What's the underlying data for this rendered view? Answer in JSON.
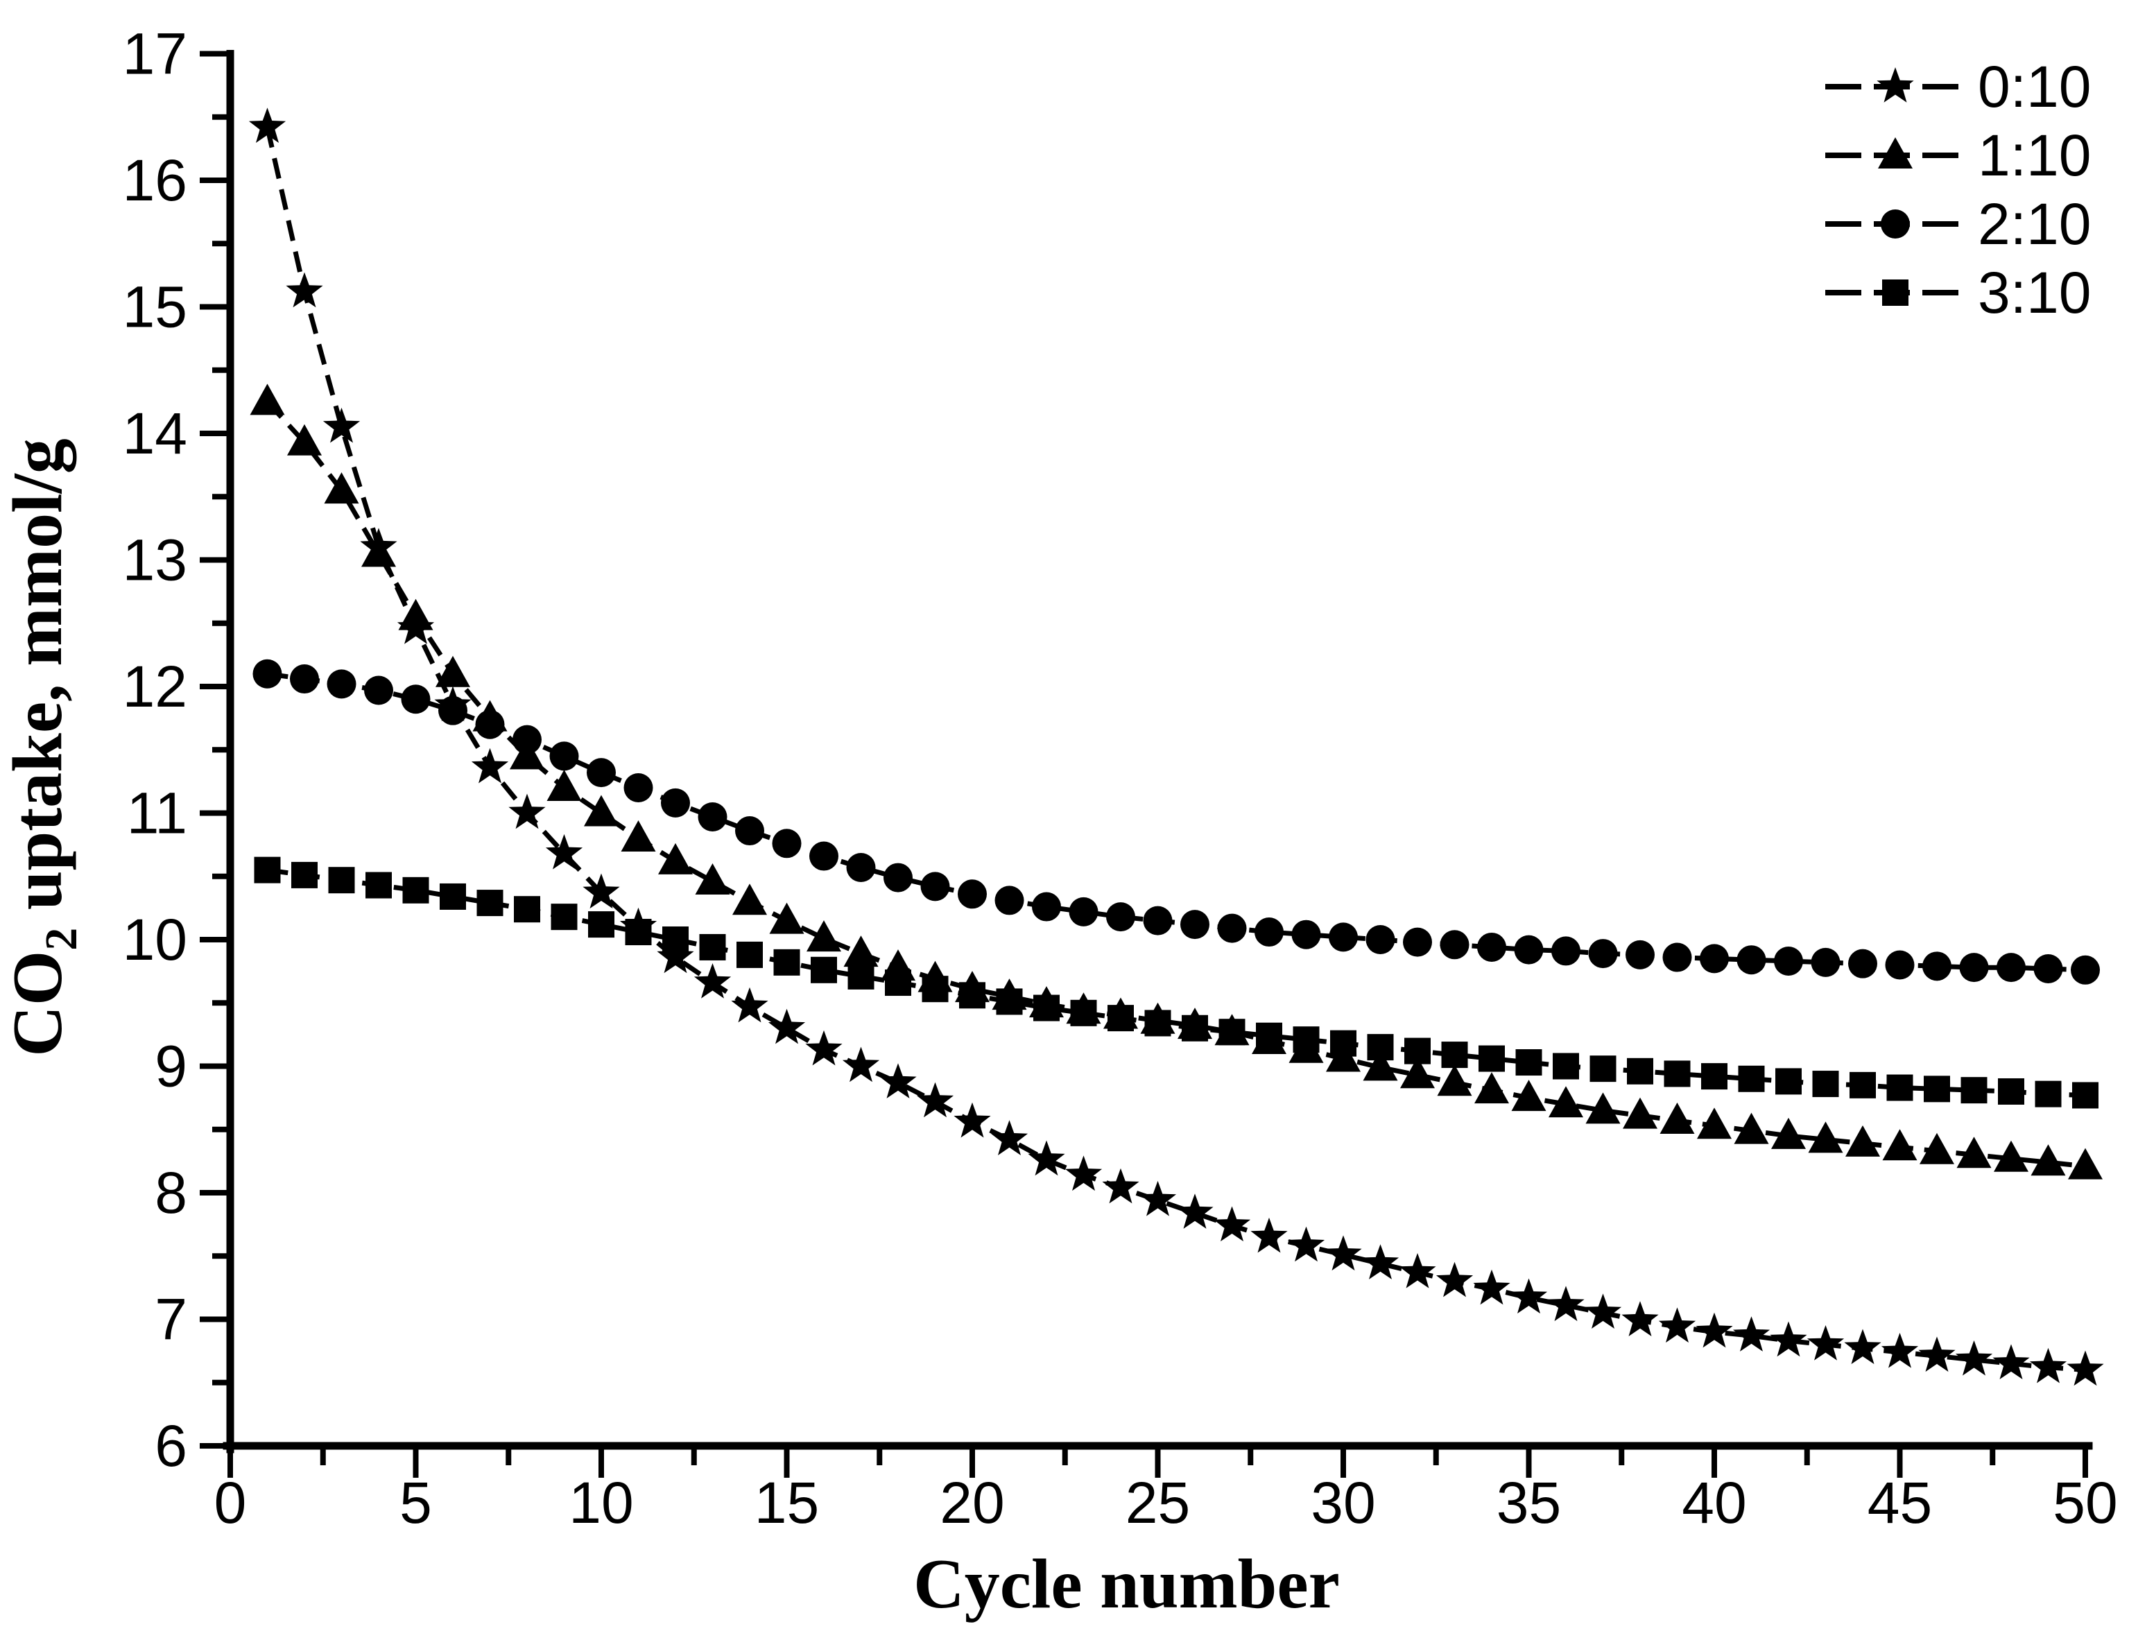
{
  "figure": {
    "background": "#ffffff",
    "foreground": "#000000"
  },
  "chart_data": {
    "type": "line",
    "title": "",
    "xlabel": "Cycle number",
    "ylabel": "CO2 uptake, mmol/g",
    "ylabel_parts": {
      "base": "CO",
      "sub": "2",
      "rest": " uptake, mmol/g"
    },
    "xlim": [
      0,
      50
    ],
    "ylim": [
      6,
      17
    ],
    "x_major_ticks": [
      0,
      5,
      10,
      15,
      20,
      25,
      30,
      35,
      40,
      45,
      50
    ],
    "x_minor_ticks": [
      2.5,
      7.5,
      12.5,
      17.5,
      22.5,
      27.5,
      32.5,
      37.5,
      42.5,
      47.5
    ],
    "y_major_ticks": [
      6,
      7,
      8,
      9,
      10,
      11,
      12,
      13,
      14,
      15,
      16,
      17
    ],
    "y_minor_ticks": [
      6.5,
      7.5,
      8.5,
      9.5,
      10.5,
      11.5,
      12.5,
      13.5,
      14.5,
      15.5,
      16.5
    ],
    "grid": false,
    "legend_position": "top-right",
    "x": [
      1,
      2,
      3,
      4,
      5,
      6,
      7,
      8,
      9,
      10,
      11,
      12,
      13,
      14,
      15,
      16,
      17,
      18,
      19,
      20,
      21,
      22,
      23,
      24,
      25,
      26,
      27,
      28,
      29,
      30,
      31,
      32,
      33,
      34,
      35,
      36,
      37,
      38,
      39,
      40,
      41,
      42,
      43,
      44,
      45,
      46,
      47,
      48,
      49,
      50
    ],
    "series": [
      {
        "name": "0:10",
        "marker": "star",
        "values": [
          16.42,
          15.12,
          14.05,
          13.1,
          12.46,
          11.85,
          11.36,
          11.0,
          10.68,
          10.37,
          10.1,
          9.86,
          9.66,
          9.47,
          9.3,
          9.13,
          9.0,
          8.87,
          8.72,
          8.56,
          8.42,
          8.26,
          8.14,
          8.04,
          7.94,
          7.84,
          7.74,
          7.65,
          7.58,
          7.51,
          7.44,
          7.37,
          7.3,
          7.24,
          7.17,
          7.11,
          7.05,
          6.99,
          6.94,
          6.9,
          6.87,
          6.83,
          6.8,
          6.77,
          6.74,
          6.71,
          6.68,
          6.65,
          6.62,
          6.6
        ]
      },
      {
        "name": "1:10",
        "marker": "triangle",
        "values": [
          14.25,
          13.93,
          13.55,
          13.05,
          12.55,
          12.1,
          11.75,
          11.45,
          11.2,
          11.0,
          10.8,
          10.62,
          10.46,
          10.3,
          10.15,
          10.01,
          9.89,
          9.78,
          9.69,
          9.61,
          9.55,
          9.49,
          9.44,
          9.4,
          9.36,
          9.32,
          9.27,
          9.2,
          9.13,
          9.06,
          8.99,
          8.93,
          8.87,
          8.81,
          8.75,
          8.7,
          8.65,
          8.61,
          8.57,
          8.53,
          8.49,
          8.45,
          8.42,
          8.39,
          8.36,
          8.33,
          8.3,
          8.27,
          8.24,
          8.21
        ]
      },
      {
        "name": "2:10",
        "marker": "circle",
        "values": [
          12.1,
          12.06,
          12.02,
          11.97,
          11.9,
          11.81,
          11.7,
          11.58,
          11.45,
          11.32,
          11.2,
          11.08,
          10.97,
          10.86,
          10.76,
          10.66,
          10.57,
          10.49,
          10.42,
          10.36,
          10.31,
          10.26,
          10.22,
          10.18,
          10.15,
          10.12,
          10.09,
          10.06,
          10.04,
          10.02,
          10.0,
          9.98,
          9.96,
          9.94,
          9.92,
          9.91,
          9.89,
          9.88,
          9.86,
          9.85,
          9.84,
          9.83,
          9.82,
          9.81,
          9.8,
          9.79,
          9.78,
          9.78,
          9.77,
          9.76
        ]
      },
      {
        "name": "3:10",
        "marker": "square",
        "values": [
          10.55,
          10.51,
          10.47,
          10.43,
          10.39,
          10.34,
          10.29,
          10.24,
          10.18,
          10.12,
          10.06,
          10.0,
          9.94,
          9.88,
          9.82,
          9.76,
          9.71,
          9.66,
          9.61,
          9.56,
          9.51,
          9.46,
          9.42,
          9.38,
          9.34,
          9.3,
          9.27,
          9.24,
          9.21,
          9.18,
          9.15,
          9.12,
          9.09,
          9.06,
          9.03,
          9.0,
          8.98,
          8.96,
          8.94,
          8.92,
          8.9,
          8.88,
          8.86,
          8.85,
          8.83,
          8.82,
          8.81,
          8.8,
          8.78,
          8.77
        ]
      }
    ],
    "legend": [
      {
        "label": "0:10",
        "marker": "star"
      },
      {
        "label": "1:10",
        "marker": "triangle"
      },
      {
        "label": "2:10",
        "marker": "circle"
      },
      {
        "label": "3:10",
        "marker": "square"
      }
    ]
  }
}
